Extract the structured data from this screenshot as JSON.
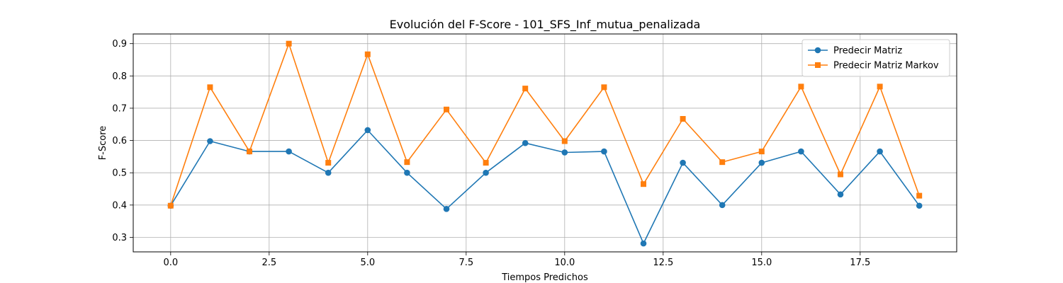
{
  "chart_data": {
    "type": "line",
    "title": "Evolución del F-Score - 101_SFS_Inf_mutua_penalizada",
    "xlabel": "Tiempos Predichos",
    "ylabel": "F-Score",
    "xlim": [
      -0.95,
      19.95
    ],
    "ylim": [
      0.255,
      0.93
    ],
    "xticks": [
      0.0,
      2.5,
      5.0,
      7.5,
      10.0,
      12.5,
      15.0,
      17.5
    ],
    "xtick_labels": [
      "0.0",
      "2.5",
      "5.0",
      "7.5",
      "10.0",
      "12.5",
      "15.0",
      "17.5"
    ],
    "yticks": [
      0.3,
      0.4,
      0.5,
      0.6,
      0.7,
      0.8,
      0.9
    ],
    "ytick_labels": [
      "0.3",
      "0.4",
      "0.5",
      "0.6",
      "0.7",
      "0.8",
      "0.9"
    ],
    "grid": true,
    "legend_position": "top-right",
    "x": [
      0,
      1,
      2,
      3,
      4,
      5,
      6,
      7,
      8,
      9,
      10,
      11,
      12,
      13,
      14,
      15,
      16,
      17,
      18,
      19
    ],
    "series": [
      {
        "name": "Predecir Matriz",
        "color": "#1f77b4",
        "marker": "circle",
        "values": [
          0.398,
          0.598,
          0.566,
          0.566,
          0.5,
          0.632,
          0.5,
          0.388,
          0.5,
          0.592,
          0.563,
          0.566,
          0.281,
          0.531,
          0.4,
          0.531,
          0.566,
          0.433,
          0.566,
          0.398
        ]
      },
      {
        "name": "Predecir Matriz Markov",
        "color": "#ff7f0e",
        "marker": "square",
        "values": [
          0.398,
          0.765,
          0.566,
          0.9,
          0.531,
          0.867,
          0.533,
          0.696,
          0.531,
          0.761,
          0.598,
          0.765,
          0.465,
          0.667,
          0.533,
          0.566,
          0.767,
          0.495,
          0.767,
          0.429
        ]
      }
    ]
  }
}
